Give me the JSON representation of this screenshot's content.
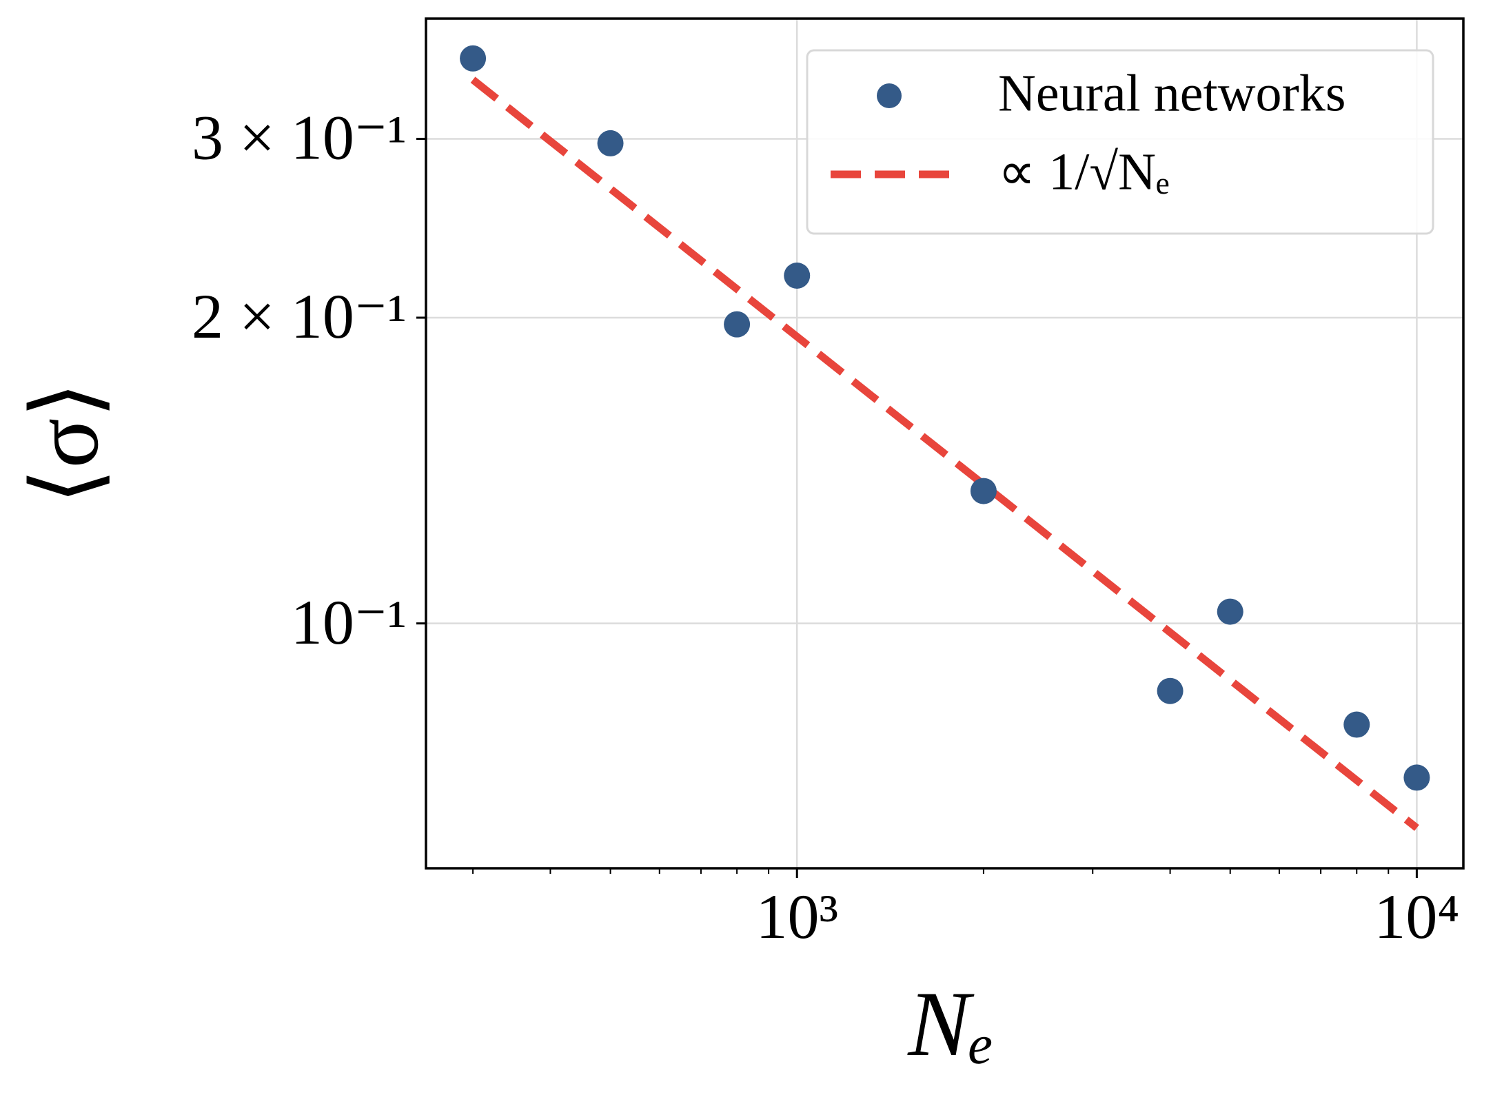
{
  "chart_data": {
    "type": "scatter",
    "xlabel": "Nₑ",
    "ylabel": "⟨σ⟩",
    "xscale": "log",
    "yscale": "log",
    "xlim": [
      252,
      11890
    ],
    "ylim": [
      0.0574,
      0.394
    ],
    "xticks": [
      {
        "value": 1000,
        "label": "10³"
      },
      {
        "value": 10000,
        "label": "10⁴"
      }
    ],
    "xminor_ticks": [
      300,
      400,
      500,
      600,
      700,
      800,
      900,
      2000,
      3000,
      4000,
      5000,
      6000,
      7000,
      8000,
      9000
    ],
    "yticks": [
      {
        "value": 0.1,
        "label": "10⁻¹"
      },
      {
        "value": 0.2,
        "label": "2 × 10⁻¹"
      },
      {
        "value": 0.3,
        "label": "3 × 10⁻¹"
      }
    ],
    "grid": true,
    "legend": "upper right",
    "series": [
      {
        "name": "Neural networks",
        "kind": "points",
        "color": "#345a88",
        "x": [
          300,
          500,
          800,
          1000,
          2000,
          4000,
          5000,
          8000,
          10000
        ],
        "values": [
          0.36,
          0.297,
          0.197,
          0.22,
          0.135,
          0.0858,
          0.1027,
          0.0795,
          0.0705
        ]
      },
      {
        "name": "∝ 1/√Nₑ",
        "kind": "dashed-line",
        "color": "#e8453c",
        "x": [
          300,
          10000
        ],
        "values": [
          0.343,
          0.0629
        ]
      }
    ]
  }
}
